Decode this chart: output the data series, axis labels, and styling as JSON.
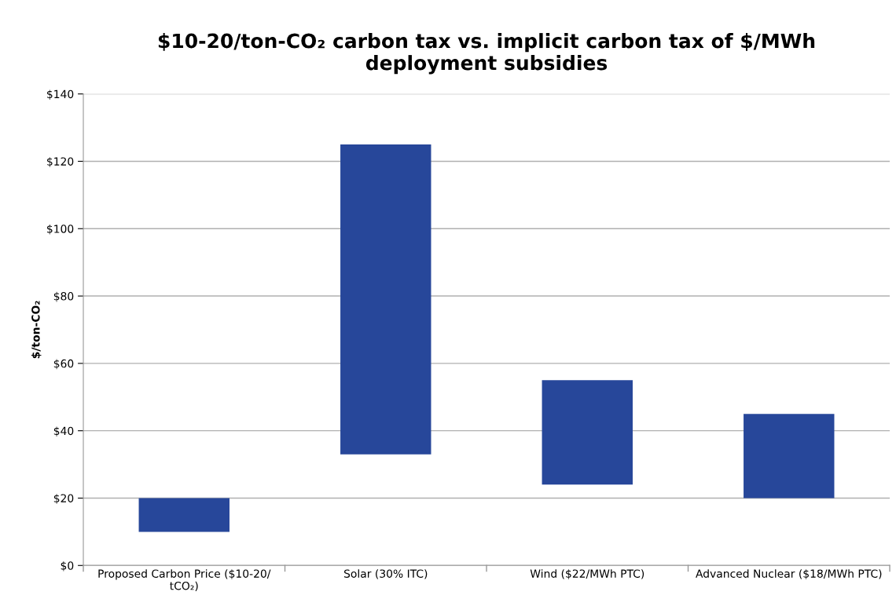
{
  "chart_data": {
    "type": "bar",
    "title": "$10-20/ton-CO₂ carbon tax vs. implicit carbon tax of $/MWh\ndeployment subsidies",
    "ylabel": "$/ton-CO₂",
    "categories": [
      "Proposed Carbon Price ($10-20/\ntCO₂)",
      "Solar (30% ITC)",
      "Wind ($22/MWh PTC)",
      "Advanced Nuclear ($18/MWh PTC)"
    ],
    "base": [
      10,
      33,
      24,
      20
    ],
    "values": [
      10,
      92,
      31,
      25
    ],
    "color": "#27479a",
    "ylim": [
      0,
      140
    ],
    "yticks": [
      {
        "value": 0,
        "label": "$0"
      },
      {
        "value": 20,
        "label": "$20"
      },
      {
        "value": 40,
        "label": "$40"
      },
      {
        "value": 60,
        "label": "$60"
      },
      {
        "value": 80,
        "label": "$80"
      },
      {
        "value": 100,
        "label": "$100"
      },
      {
        "value": 120,
        "label": "$120"
      },
      {
        "value": 140,
        "label": "$140"
      }
    ],
    "grid": "y",
    "legend": false
  }
}
